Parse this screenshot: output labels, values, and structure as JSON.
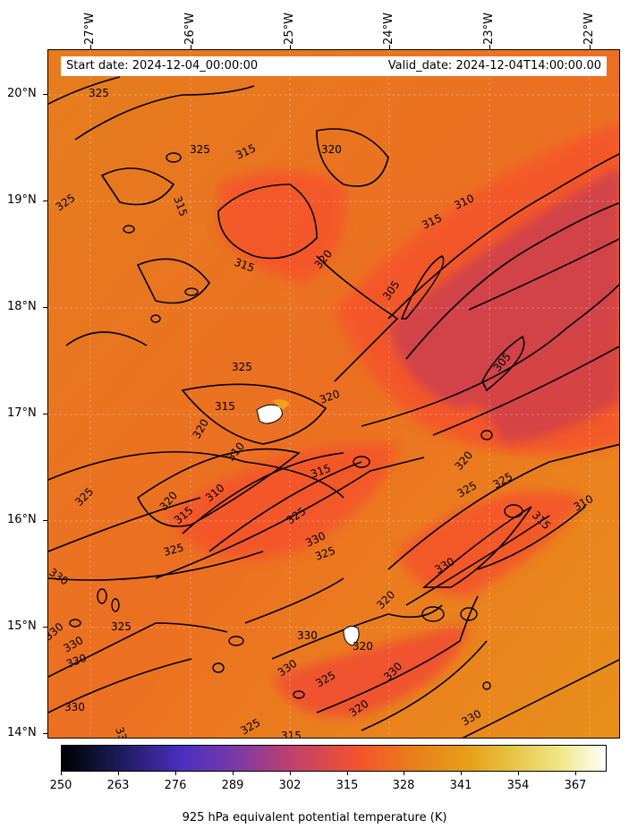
{
  "map": {
    "start_date_label": "Start date: 2024-12-04_00:00:00",
    "valid_date_label": "Valid_date: 2024-12-04T14:00:00.00",
    "longitude_labels": [
      "27°W",
      "26°W",
      "25°W",
      "24°W",
      "23°W",
      "22°W"
    ],
    "latitude_labels": [
      "20°N",
      "19°N",
      "18°N",
      "17°N",
      "16°N",
      "15°N",
      "14°N"
    ],
    "contour_levels": [
      "305",
      "310",
      "315",
      "320",
      "325",
      "330"
    ],
    "contour_color": "#000000",
    "field_colors": {
      "low": "#cc3f4f",
      "mid": "#f4542a",
      "high": "#e8901a"
    }
  },
  "colorbar": {
    "title": "925 hPa equivalent potential temperature (K)",
    "tick_labels": [
      "250",
      "263",
      "276",
      "289",
      "302",
      "315",
      "328",
      "341",
      "354",
      "367"
    ],
    "colormap": "CMRmap"
  }
}
